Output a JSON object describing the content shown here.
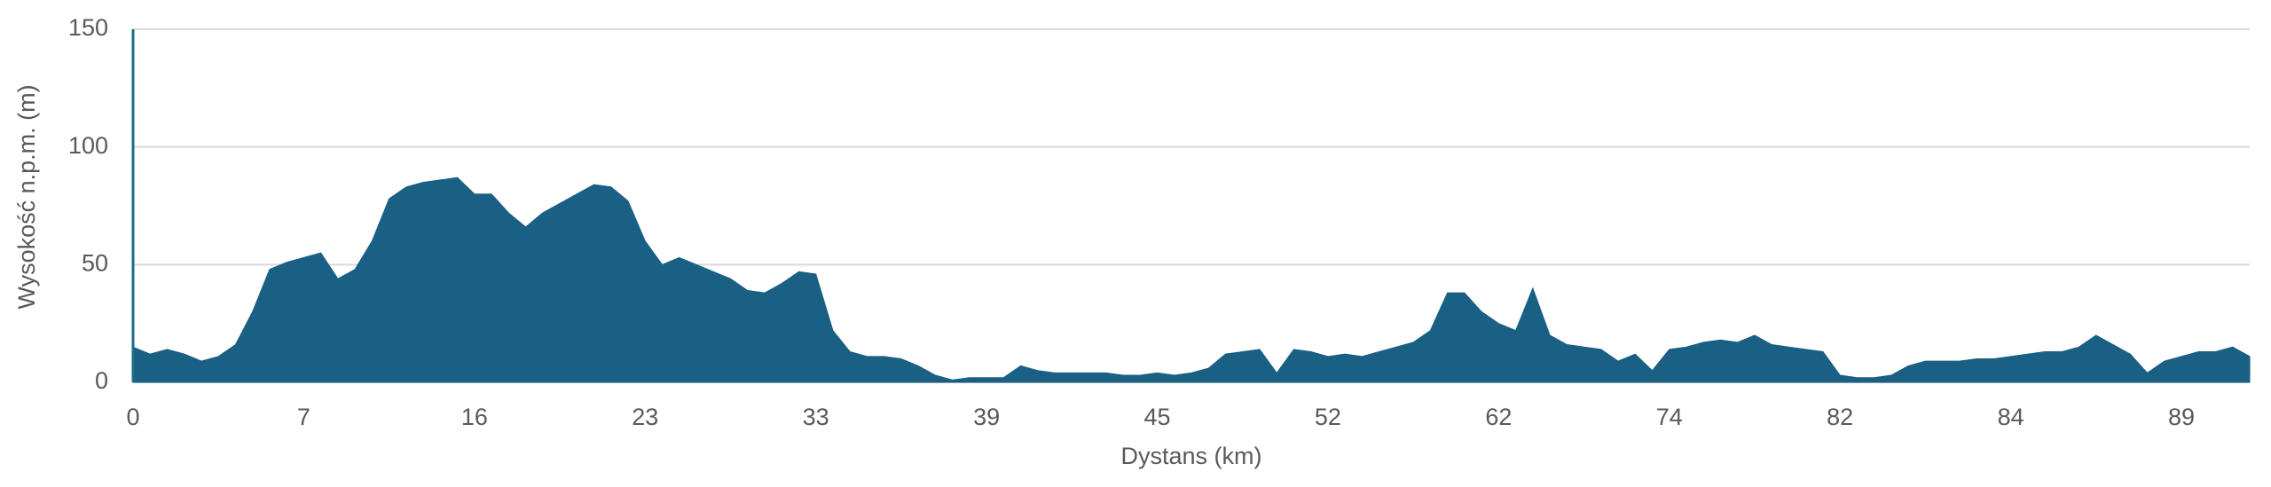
{
  "chart_data": {
    "type": "area",
    "x_label": "Dystans (km)",
    "y_label": "Wysokość n.p.m. (m)",
    "color": "#1a5f84",
    "grid": true,
    "ylim": [
      0,
      150
    ],
    "yticks": [
      0,
      50,
      100,
      150
    ],
    "categories": [
      "0",
      null,
      null,
      null,
      null,
      null,
      null,
      null,
      null,
      null,
      "7",
      null,
      null,
      null,
      null,
      null,
      null,
      null,
      null,
      null,
      "16",
      null,
      null,
      null,
      null,
      null,
      null,
      null,
      null,
      null,
      "23",
      null,
      null,
      null,
      null,
      null,
      null,
      null,
      null,
      null,
      "33",
      null,
      null,
      null,
      null,
      null,
      null,
      null,
      null,
      null,
      "39",
      null,
      null,
      null,
      null,
      null,
      null,
      null,
      null,
      null,
      "45",
      null,
      null,
      null,
      null,
      null,
      null,
      null,
      null,
      null,
      "52",
      null,
      null,
      null,
      null,
      null,
      null,
      null,
      null,
      null,
      "62",
      null,
      null,
      null,
      null,
      null,
      null,
      null,
      null,
      null,
      "74",
      null,
      null,
      null,
      null,
      null,
      null,
      null,
      null,
      null,
      "82",
      null,
      null,
      null,
      null,
      null,
      null,
      null,
      null,
      null,
      "84",
      null,
      null,
      null,
      null,
      null,
      null,
      null,
      null,
      null,
      "89",
      null,
      null,
      null,
      null
    ],
    "values": [
      15,
      12,
      14,
      12,
      9,
      11,
      16,
      30,
      48,
      51,
      53,
      55,
      44,
      48,
      60,
      78,
      83,
      85,
      86,
      87,
      80,
      80,
      72,
      66,
      72,
      76,
      80,
      84,
      83,
      77,
      60,
      50,
      53,
      50,
      47,
      44,
      39,
      38,
      42,
      47,
      46,
      22,
      13,
      11,
      11,
      10,
      7,
      3,
      1,
      2,
      2,
      2,
      7,
      5,
      4,
      4,
      4,
      4,
      3,
      3,
      4,
      3,
      4,
      6,
      12,
      13,
      14,
      4,
      14,
      13,
      11,
      12,
      11,
      13,
      15,
      17,
      22,
      38,
      38,
      30,
      25,
      22,
      40,
      20,
      16,
      15,
      14,
      9,
      12,
      5,
      14,
      15,
      17,
      18,
      17,
      20,
      16,
      15,
      14,
      13,
      3,
      2,
      2,
      3,
      7,
      9,
      9,
      9,
      10,
      10,
      11,
      12,
      13,
      13,
      15,
      20,
      16,
      12,
      4,
      9,
      11,
      13,
      13,
      15,
      11
    ]
  }
}
